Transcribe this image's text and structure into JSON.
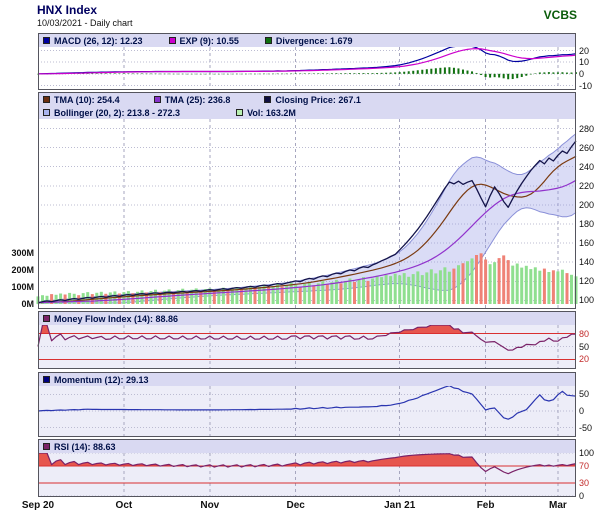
{
  "header": {
    "title": "HNX Index",
    "subtitle": "10/03/2021 - Daily chart",
    "brand": "VCBS"
  },
  "legends": {
    "macd": [
      {
        "label": "MACD (26, 12): 12.23",
        "color": "#0000a0"
      },
      {
        "label": "EXP (9): 10.55",
        "color": "#cc00cc"
      },
      {
        "label": "Divergence: 1.679",
        "color": "#107010"
      }
    ],
    "main_row1": [
      {
        "label": "TMA (10): 254.4",
        "color": "#6b2f10"
      },
      {
        "label": "TMA (25): 236.8",
        "color": "#8833cc"
      },
      {
        "label": "Closing Price: 267.1",
        "color": "#101040"
      }
    ],
    "main_row2": [
      {
        "label": "Bollinger (20, 2): 213.8 - 272.3",
        "color": "#aab4ee"
      },
      {
        "label": "Vol: 163.2M",
        "color": "#b8f0b0"
      }
    ],
    "mfi": [
      {
        "label": "Money Flow Index (14): 88.86",
        "color": "#7a2268"
      }
    ],
    "momentum": [
      {
        "label": "Momentum (12): 29.13",
        "color": "#000080"
      }
    ],
    "rsi": [
      {
        "label": "RSI (14): 88.63",
        "color": "#7a2268"
      }
    ]
  },
  "axes": {
    "macd_ticks": [
      20,
      10,
      0,
      -10
    ],
    "price_ticks": [
      280,
      260,
      240,
      220,
      200,
      180,
      160,
      140,
      120,
      100
    ],
    "volume_ticks": [
      "300M",
      "200M",
      "100M",
      "0M"
    ],
    "mfi_ticks": [
      80,
      50,
      20
    ],
    "momentum_ticks": [
      50,
      0,
      -50
    ],
    "rsi_ticks": [
      100,
      70,
      30,
      0
    ],
    "x_labels": [
      "Sep 20",
      "Oct",
      "Nov",
      "Dec",
      "Jan 21",
      "Feb",
      "Mar"
    ]
  },
  "colors": {
    "macd_line": "#0000a0",
    "exp_line": "#cc00cc",
    "divergence_bar": "#107010",
    "tma10_line": "#7b3a10",
    "tma25_line": "#9133cc",
    "close_line": "#14144a",
    "bollinger_fill": "rgba(150,155,228,0.35)",
    "bollinger_edge": "#8a90d8",
    "volume_up": "#8fdf8f",
    "volume_down": "#ef8276",
    "indicator_fill": "#e6564e",
    "threshold_line": "#d93030",
    "mfi_line": "#7a2268",
    "momentum_line": "#2a35b0",
    "rsi_line": "#7a2268",
    "legend_bg": "#d9d9f2",
    "indicator_panel_bg": "#ededf8"
  },
  "chart_data": {
    "type": "line",
    "title": "HNX Index - Daily chart (10/03/2021) with MACD, TMA/Bollinger/Volume, Money Flow Index, Momentum, RSI",
    "x_labels": [
      "Sep 20",
      "Oct",
      "Nov",
      "Dec",
      "Jan 21",
      "Feb",
      "Mar"
    ],
    "month_start_indices": [
      0,
      19,
      38,
      57,
      80,
      99,
      115
    ],
    "close": [
      97.5,
      98.6,
      99.4,
      98.7,
      99.8,
      100.6,
      99.9,
      101.0,
      101.8,
      101.1,
      102.2,
      103.0,
      102.3,
      103.4,
      104.0,
      103.3,
      104.4,
      105.0,
      104.3,
      105.4,
      106.0,
      105.3,
      106.4,
      107.0,
      106.3,
      107.2,
      107.8,
      107.1,
      108.0,
      108.6,
      107.9,
      108.8,
      109.4,
      108.7,
      109.6,
      110.2,
      109.5,
      110.4,
      111.2,
      110.4,
      111.4,
      112.2,
      111.4,
      112.6,
      113.4,
      112.6,
      113.8,
      114.6,
      113.8,
      115.2,
      116.0,
      115.2,
      116.6,
      117.6,
      116.8,
      118.2,
      119.2,
      120.4,
      119.6,
      121.8,
      123.0,
      122.2,
      124.4,
      125.6,
      124.8,
      127.2,
      128.6,
      127.8,
      130.2,
      131.8,
      131.0,
      133.6,
      135.2,
      134.4,
      137.2,
      139.0,
      141.4,
      143.4,
      146.0,
      148.2,
      153.0,
      157.8,
      163.0,
      168.6,
      174.6,
      181.0,
      187.8,
      195.0,
      202.4,
      210.0,
      217.6,
      224.0,
      222.0,
      224.8,
      221.5,
      223.8,
      225.5,
      217.0,
      207.0,
      198.0,
      209.5,
      219.0,
      212.0,
      203.5,
      197.5,
      206.5,
      215.0,
      222.5,
      229.5,
      236.0,
      241.5,
      246.5,
      243.0,
      249.0,
      246.0,
      252.0,
      256.5,
      254.0,
      261.0,
      267.1
    ],
    "volume_m": [
      45,
      52,
      48,
      58,
      54,
      62,
      56,
      65,
      60,
      52,
      64,
      70,
      58,
      66,
      72,
      60,
      68,
      74,
      62,
      70,
      76,
      64,
      72,
      80,
      68,
      76,
      84,
      70,
      78,
      86,
      72,
      82,
      90,
      76,
      84,
      92,
      78,
      88,
      92,
      80,
      86,
      96,
      82,
      90,
      100,
      86,
      96,
      106,
      92,
      100,
      112,
      96,
      106,
      118,
      102,
      112,
      124,
      112,
      100,
      118,
      128,
      110,
      122,
      134,
      116,
      128,
      142,
      122,
      136,
      150,
      130,
      142,
      158,
      136,
      150,
      166,
      158,
      172,
      164,
      178,
      168,
      182,
      160,
      176,
      192,
      170,
      186,
      204,
      180,
      198,
      216,
      190,
      208,
      228,
      240,
      252,
      268,
      288,
      298,
      262,
      234,
      246,
      270,
      286,
      258,
      226,
      238,
      214,
      225,
      205,
      216,
      196,
      208,
      188,
      198,
      192,
      202,
      182,
      172,
      163.2
    ],
    "panels": [
      {
        "name": "MACD",
        "type": "line+histogram",
        "series_last": {
          "macd_26_12": 12.23,
          "exp_9": 10.55,
          "divergence": 1.679
        },
        "yticks": [
          20,
          10,
          0,
          -10
        ]
      },
      {
        "name": "Price",
        "type": "line",
        "series_last": {
          "tma10": 254.4,
          "tma25": 236.8,
          "close": 267.1,
          "bollinger_low": 213.8,
          "bollinger_high": 272.3,
          "volume_m": 163.2
        },
        "yticks": [
          280,
          260,
          240,
          220,
          200,
          180,
          160,
          140,
          120,
          100
        ],
        "volume_yticks_m": [
          300,
          200,
          100,
          0
        ]
      },
      {
        "name": "Money Flow Index (14)",
        "type": "line",
        "last": 88.86,
        "yticks": [
          80,
          50,
          20
        ],
        "thresholds": [
          80,
          20
        ]
      },
      {
        "name": "Momentum (12)",
        "type": "line",
        "last": 29.13,
        "yticks": [
          50,
          0,
          -50
        ]
      },
      {
        "name": "RSI (14)",
        "type": "line",
        "last": 88.63,
        "yticks": [
          100,
          70,
          30,
          0
        ],
        "thresholds": [
          70,
          30
        ]
      }
    ]
  }
}
